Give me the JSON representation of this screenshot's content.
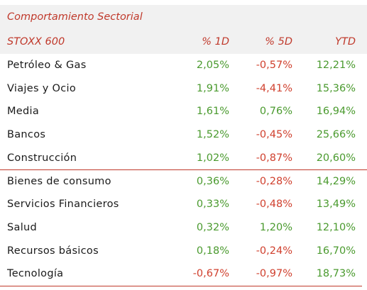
{
  "table": {
    "title": "Comportamiento Sectorial",
    "headers": [
      "STOXX 600",
      "% 1D",
      "% 5D",
      "YTD"
    ],
    "rows": [
      {
        "name": "Petróleo & Gas",
        "d1": "2,05%",
        "d5": "-0,57%",
        "ytd": "12,21%"
      },
      {
        "name": "Viajes y Ocio",
        "d1": "1,91%",
        "d5": "-4,41%",
        "ytd": "15,36%"
      },
      {
        "name": "Media",
        "d1": "1,61%",
        "d5": "0,76%",
        "ytd": "16,94%"
      },
      {
        "name": "Bancos",
        "d1": "1,52%",
        "d5": "-0,45%",
        "ytd": "25,66%"
      },
      {
        "name": "Construcción",
        "d1": "1,02%",
        "d5": "-0,87%",
        "ytd": "20,60%"
      },
      {
        "name": "Bienes de consumo",
        "d1": "0,36%",
        "d5": "-0,28%",
        "ytd": "14,29%"
      },
      {
        "name": "Servicios Financieros",
        "d1": "0,33%",
        "d5": "-0,48%",
        "ytd": "13,49%"
      },
      {
        "name": "Salud",
        "d1": "0,32%",
        "d5": "1,20%",
        "ytd": "12,10%"
      },
      {
        "name": "Recursos básicos",
        "d1": "0,18%",
        "d5": "-0,24%",
        "ytd": "16,70%"
      },
      {
        "name": "Tecnología",
        "d1": "-0,67%",
        "d5": "-0,97%",
        "ytd": "18,73%"
      }
    ]
  },
  "colors": {
    "accent": "#c0392b",
    "positive": "#4a9a2e",
    "negative": "#d0402e",
    "header_bg": "#f1f1f1"
  }
}
